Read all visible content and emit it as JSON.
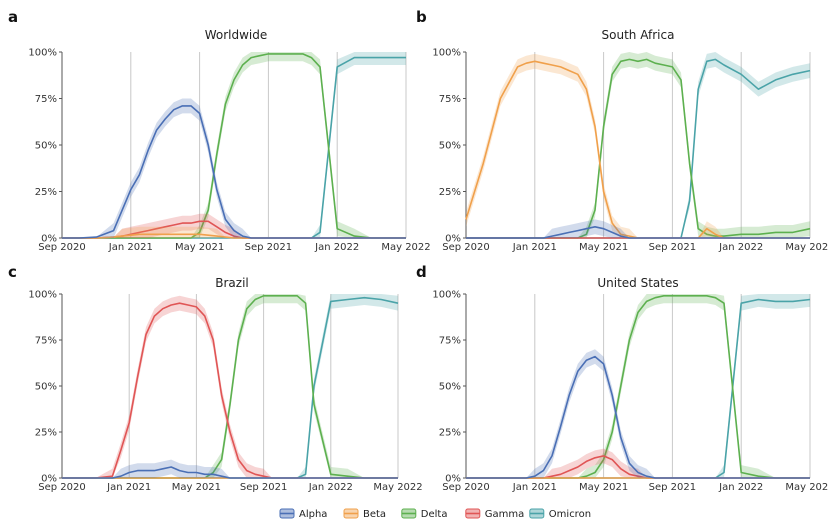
{
  "colors": {
    "Alpha": "#4a6fb5",
    "Beta": "#f0a04b",
    "Delta": "#5db04f",
    "Gamma": "#e05555",
    "Omicron": "#4aa3a8",
    "Other": "#9c7a55"
  },
  "legend": [
    "Alpha",
    "Beta",
    "Delta",
    "Gamma",
    "Omicron"
  ],
  "chart_data": [
    {
      "type": "area",
      "letter": "a",
      "title": "Worldwide",
      "x_ticks": [
        "Sep 2020",
        "Jan 2021",
        "May 2021",
        "Sep 2021",
        "Jan 2022",
        "May 2022"
      ],
      "y_ticks": [
        "0%",
        "25%",
        "50%",
        "75%",
        "100%"
      ],
      "ylim": [
        0,
        100
      ],
      "x_unit": "months since Sep 2020",
      "x": [
        0,
        1,
        2,
        3,
        3.5,
        4,
        4.5,
        5,
        5.5,
        6,
        6.5,
        7,
        7.5,
        8,
        8.5,
        9,
        9.5,
        10,
        10.5,
        11,
        11.5,
        12,
        12.5,
        13,
        13.5,
        14,
        14.5,
        15,
        16,
        17,
        18,
        19,
        20
      ],
      "series": [
        {
          "name": "Alpha",
          "values": [
            0,
            0,
            0.5,
            4,
            15,
            26,
            34,
            47,
            58,
            64,
            69,
            71,
            71,
            67,
            50,
            26,
            10,
            4,
            1,
            0,
            0,
            0,
            0,
            0,
            0,
            0,
            0,
            0,
            0,
            0,
            0,
            0,
            0
          ]
        },
        {
          "name": "Beta",
          "values": [
            0,
            0,
            0,
            0.5,
            1,
            1.5,
            2,
            2,
            2,
            2,
            2,
            2,
            2,
            2,
            1.5,
            1,
            0.5,
            0,
            0,
            0,
            0,
            0,
            0,
            0,
            0,
            0,
            0,
            0,
            0,
            0,
            0,
            0,
            0
          ]
        },
        {
          "name": "Delta",
          "values": [
            0,
            0,
            0,
            0,
            0,
            0,
            0,
            0,
            0,
            0,
            0,
            0,
            0,
            3,
            15,
            45,
            72,
            85,
            93,
            97,
            98,
            99,
            99,
            99,
            99,
            99,
            97,
            92,
            5,
            1,
            0,
            0,
            0
          ]
        },
        {
          "name": "Gamma",
          "values": [
            0,
            0,
            0,
            0.5,
            1,
            2,
            3,
            4,
            5,
            6,
            7,
            8,
            8,
            9,
            9,
            6,
            3,
            1,
            0,
            0,
            0,
            0,
            0,
            0,
            0,
            0,
            0,
            0,
            0,
            0,
            0,
            0,
            0
          ]
        },
        {
          "name": "Omicron",
          "values": [
            0,
            0,
            0,
            0,
            0,
            0,
            0,
            0,
            0,
            0,
            0,
            0,
            0,
            0,
            0,
            0,
            0,
            0,
            0,
            0,
            0,
            0,
            0,
            0,
            0,
            0,
            0,
            3,
            92,
            97,
            97,
            97,
            97
          ]
        }
      ]
    },
    {
      "type": "area",
      "letter": "b",
      "title": "South Africa",
      "x_ticks": [
        "Sep 2020",
        "Jan 2021",
        "May 2021",
        "Sep 2021",
        "Jan 2022",
        "May 2022"
      ],
      "y_ticks": [
        "0%",
        "25%",
        "50%",
        "75%",
        "100%"
      ],
      "ylim": [
        0,
        100
      ],
      "x_unit": "months since Sep 2020",
      "x": [
        0,
        1,
        2,
        3,
        3.5,
        4,
        4.5,
        5,
        5.5,
        6,
        6.5,
        7,
        7.5,
        8,
        8.5,
        9,
        9.5,
        10,
        10.5,
        11,
        11.5,
        12,
        12.5,
        13,
        13.5,
        14,
        14.5,
        15,
        16,
        17,
        18,
        19,
        20
      ],
      "series": [
        {
          "name": "Alpha",
          "values": [
            0,
            0,
            0,
            0,
            0,
            0,
            0,
            1,
            2,
            3,
            4,
            5,
            6,
            5,
            3,
            1,
            0,
            0,
            0,
            0,
            0,
            0,
            0,
            0,
            0,
            0,
            0,
            0,
            0,
            0,
            0,
            0,
            0
          ]
        },
        {
          "name": "Beta",
          "values": [
            10,
            40,
            75,
            92,
            94,
            95,
            94,
            93,
            92,
            90,
            88,
            80,
            60,
            25,
            8,
            2,
            1,
            0,
            0,
            0,
            0,
            0,
            0,
            0,
            0,
            5,
            2,
            0,
            0,
            0,
            0,
            0,
            0
          ]
        },
        {
          "name": "Delta",
          "values": [
            0,
            0,
            0,
            0,
            0,
            0,
            0,
            0,
            0,
            0,
            0,
            2,
            15,
            60,
            88,
            95,
            96,
            95,
            96,
            94,
            93,
            92,
            85,
            40,
            5,
            2,
            1,
            1,
            2,
            2,
            3,
            3,
            5
          ]
        },
        {
          "name": "Gamma",
          "values": [
            0,
            0,
            0,
            0,
            0,
            0,
            0,
            0,
            0,
            0,
            0,
            0,
            0,
            0,
            0,
            0,
            0,
            0,
            0,
            0,
            0,
            0,
            0,
            0,
            0,
            0,
            0,
            0,
            0,
            0,
            0,
            0,
            0
          ]
        },
        {
          "name": "Omicron",
          "values": [
            0,
            0,
            0,
            0,
            0,
            0,
            0,
            0,
            0,
            0,
            0,
            0,
            0,
            0,
            0,
            0,
            0,
            0,
            0,
            0,
            0,
            0,
            0,
            20,
            80,
            95,
            96,
            93,
            88,
            80,
            85,
            88,
            90
          ]
        }
      ]
    },
    {
      "type": "area",
      "letter": "c",
      "title": "Brazil",
      "x_ticks": [
        "Sep 2020",
        "Jan 2021",
        "May 2021",
        "Sep 2021",
        "Jan 2022",
        "May 2022"
      ],
      "y_ticks": [
        "0%",
        "25%",
        "50%",
        "75%",
        "100%"
      ],
      "ylim": [
        0,
        100
      ],
      "x_unit": "months since Sep 2020",
      "x": [
        0,
        1,
        2,
        3,
        3.5,
        4,
        4.5,
        5,
        5.5,
        6,
        6.5,
        7,
        7.5,
        8,
        8.5,
        9,
        9.5,
        10,
        10.5,
        11,
        11.5,
        12,
        12.5,
        13,
        13.5,
        14,
        14.5,
        15,
        16,
        17,
        18,
        19,
        20
      ],
      "series": [
        {
          "name": "Alpha",
          "values": [
            0,
            0,
            0,
            0,
            1,
            3,
            4,
            4,
            4,
            5,
            6,
            4,
            3,
            3,
            2,
            2,
            1,
            0,
            0,
            0,
            0,
            0,
            0,
            0,
            0,
            0,
            0,
            0,
            0,
            0,
            0,
            0,
            0
          ]
        },
        {
          "name": "Beta",
          "values": [
            0,
            0,
            0,
            0,
            0,
            0,
            0,
            0,
            0,
            0,
            0,
            0,
            0,
            0,
            0,
            0,
            0,
            0,
            0,
            0,
            0,
            0,
            0,
            0,
            0,
            0,
            0,
            0,
            0,
            0,
            0,
            0,
            0
          ]
        },
        {
          "name": "Delta",
          "values": [
            0,
            0,
            0,
            0,
            0,
            0,
            0,
            0,
            0,
            0,
            0,
            0,
            0,
            0,
            0,
            3,
            10,
            40,
            75,
            92,
            97,
            99,
            99,
            99,
            99,
            99,
            95,
            40,
            2,
            1,
            0,
            0,
            0
          ]
        },
        {
          "name": "Gamma",
          "values": [
            0,
            0,
            0,
            1,
            15,
            30,
            55,
            78,
            88,
            92,
            94,
            95,
            94,
            93,
            88,
            75,
            45,
            25,
            10,
            4,
            2,
            1,
            0,
            0,
            0,
            0,
            0,
            0,
            0,
            0,
            0,
            0,
            0
          ]
        },
        {
          "name": "Omicron",
          "values": [
            0,
            0,
            0,
            0,
            0,
            0,
            0,
            0,
            0,
            0,
            0,
            0,
            0,
            0,
            0,
            0,
            0,
            0,
            0,
            0,
            0,
            0,
            0,
            0,
            0,
            0,
            2,
            50,
            96,
            97,
            98,
            97,
            95
          ]
        }
      ]
    },
    {
      "type": "area",
      "letter": "d",
      "title": "United States",
      "x_ticks": [
        "Sep 2020",
        "Jan 2021",
        "May 2021",
        "Sep 2021",
        "Jan 2022",
        "May 2022"
      ],
      "y_ticks": [
        "0%",
        "25%",
        "50%",
        "75%",
        "100%"
      ],
      "ylim": [
        0,
        100
      ],
      "x_unit": "months since Sep 2020",
      "x": [
        0,
        1,
        2,
        3,
        3.5,
        4,
        4.5,
        5,
        5.5,
        6,
        6.5,
        7,
        7.5,
        8,
        8.5,
        9,
        9.5,
        10,
        10.5,
        11,
        11.5,
        12,
        12.5,
        13,
        13.5,
        14,
        14.5,
        15,
        16,
        17,
        18,
        19,
        20
      ],
      "series": [
        {
          "name": "Alpha",
          "values": [
            0,
            0,
            0,
            0,
            0,
            1,
            4,
            12,
            28,
            45,
            58,
            64,
            66,
            62,
            45,
            22,
            8,
            3,
            1,
            0,
            0,
            0,
            0,
            0,
            0,
            0,
            0,
            0,
            0,
            0,
            0,
            0,
            0
          ]
        },
        {
          "name": "Beta",
          "values": [
            0,
            0,
            0,
            0,
            0,
            0,
            0,
            0,
            0,
            0,
            0,
            0,
            0,
            0,
            0,
            0,
            0,
            0,
            0,
            0,
            0,
            0,
            0,
            0,
            0,
            0,
            0,
            0,
            0,
            0,
            0,
            0,
            0
          ]
        },
        {
          "name": "Delta",
          "values": [
            0,
            0,
            0,
            0,
            0,
            0,
            0,
            0,
            0,
            0,
            0,
            1,
            3,
            10,
            25,
            50,
            75,
            90,
            96,
            98,
            99,
            99,
            99,
            99,
            99,
            99,
            98,
            95,
            3,
            1,
            0,
            0,
            0
          ]
        },
        {
          "name": "Gamma",
          "values": [
            0,
            0,
            0,
            0,
            0,
            0,
            0,
            1,
            2,
            4,
            6,
            9,
            11,
            12,
            10,
            5,
            2,
            1,
            0,
            0,
            0,
            0,
            0,
            0,
            0,
            0,
            0,
            0,
            0,
            0,
            0,
            0,
            0
          ]
        },
        {
          "name": "Omicron",
          "values": [
            0,
            0,
            0,
            0,
            0,
            0,
            0,
            0,
            0,
            0,
            0,
            0,
            0,
            0,
            0,
            0,
            0,
            0,
            0,
            0,
            0,
            0,
            0,
            0,
            0,
            0,
            0,
            3,
            95,
            97,
            96,
            96,
            97
          ]
        }
      ]
    }
  ]
}
